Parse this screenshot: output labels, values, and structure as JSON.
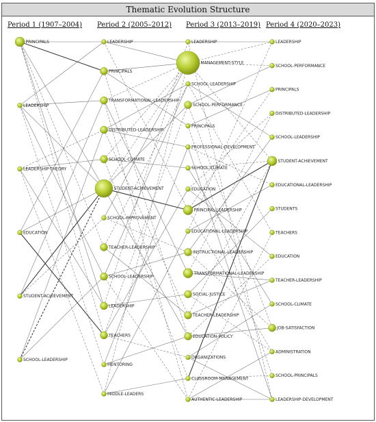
{
  "title": "Thematic Evolution Structure",
  "colors": {
    "node": "#b5cc2e",
    "node_dark": "#7f8f16",
    "node_light": "#eef7a4",
    "edge": "#333333"
  },
  "periods": [
    {
      "label": "Period 1 (1907–2004)",
      "nodes": [
        {
          "name": "PRINCIPALS",
          "size": 3
        },
        {
          "name": "LEADERSHIP",
          "size": 1
        },
        {
          "name": "LEADERSHIP-THEORY",
          "size": 1
        },
        {
          "name": "EDUCATION",
          "size": 1
        },
        {
          "name": "STUDENT-ACHIEVEMENT",
          "size": 1
        },
        {
          "name": "SCHOOL-LEADERSHIP",
          "size": 1
        }
      ]
    },
    {
      "label": "Period 2 (2005–2012)",
      "nodes": [
        {
          "name": "LEADERSHIP",
          "size": 1
        },
        {
          "name": "PRINCIPALS",
          "size": 2
        },
        {
          "name": "TRANSFORMATIONAL-LEADERSHIP",
          "size": 2
        },
        {
          "name": "DISTRIBUTED-LEADERSHIP",
          "size": 2
        },
        {
          "name": "SCHOOL-CLIMATE",
          "size": 2
        },
        {
          "name": "STUDENT-ACHIEVEMENT",
          "size": 5
        },
        {
          "name": "SCHOOL-IMPROVEMENT",
          "size": 1
        },
        {
          "name": "TEACHER-LEADERSHIP",
          "size": 2
        },
        {
          "name": "SCHOOL-LEADERSHIP",
          "size": 2
        },
        {
          "name": "LEADERSHIP",
          "size": 2
        },
        {
          "name": "TEACHERS",
          "size": 2
        },
        {
          "name": "MENTORING",
          "size": 1
        },
        {
          "name": "MIDDLE-LEADERS",
          "size": 1
        }
      ]
    },
    {
      "label": "Period 3 (2013–2019)",
      "nodes": [
        {
          "name": "LEADERSHIP",
          "size": 1
        },
        {
          "name": "MANAGEMENT-STYLE",
          "size": 6
        },
        {
          "name": "SCHOOL-LEADERSHIP",
          "size": 1
        },
        {
          "name": "SCHOOL-PERFORMANCE",
          "size": 2
        },
        {
          "name": "PRINCIPALS",
          "size": 1
        },
        {
          "name": "PROFESSIONAL-DEVELOPMENT",
          "size": 1
        },
        {
          "name": "SCHOOL-CLIMATE",
          "size": 1
        },
        {
          "name": "EDUCATION",
          "size": 1
        },
        {
          "name": "PRINCIPAL-LEADERSHIP",
          "size": 3
        },
        {
          "name": "EDUCATIONAL-LEADERSHIP",
          "size": 1
        },
        {
          "name": "INSTRUCTIONAL-LEADERSHIP",
          "size": 2
        },
        {
          "name": "TRANSFORMATIONAL-LEADERSHIP",
          "size": 3
        },
        {
          "name": "SOCIAL-JUSTICE",
          "size": 2
        },
        {
          "name": "TEACHER-LEADERSHIP",
          "size": 2
        },
        {
          "name": "EDUCATION-POLICY",
          "size": 2
        },
        {
          "name": "ORGANIZATIONS",
          "size": 1
        },
        {
          "name": "CLASSROOM-MANAGEMENT",
          "size": 1
        },
        {
          "name": "AUTHENTIC-LEADERSHIP",
          "size": 1
        }
      ]
    },
    {
      "label": "Period 4 (2020–2023)",
      "nodes": [
        {
          "name": "LEADERSHIP",
          "size": 1
        },
        {
          "name": "SCHOOL-PERFORMANCE",
          "size": 1
        },
        {
          "name": "PRINCIPALS",
          "size": 1
        },
        {
          "name": "DISTRIBUTED-LEADERSHIP",
          "size": 1
        },
        {
          "name": "SCHOOL-LEADERSHIP",
          "size": 1
        },
        {
          "name": "STUDENT-ACHIEVEMENT",
          "size": 3
        },
        {
          "name": "EDUCATIONAL-LEADERSHIP",
          "size": 1
        },
        {
          "name": "STUDENTS",
          "size": 1
        },
        {
          "name": "TEACHERS",
          "size": 1
        },
        {
          "name": "EDUCATION",
          "size": 1
        },
        {
          "name": "TEACHER-LEADERSHIP",
          "size": 1
        },
        {
          "name": "SCHOOL-CLIMATE",
          "size": 1
        },
        {
          "name": "JOB-SATISFACTION",
          "size": 2
        },
        {
          "name": "ADMINISTRATION",
          "size": 1
        },
        {
          "name": "SCHOOL-PRINCIPALS",
          "size": 1
        },
        {
          "name": "LEADERSHIP-DEVELOPMENT",
          "size": 1
        }
      ]
    }
  ],
  "links": [
    {
      "from": [
        0,
        0
      ],
      "to": [
        1,
        0
      ],
      "style": "solid",
      "weight": 1
    },
    {
      "from": [
        0,
        0
      ],
      "to": [
        1,
        1
      ],
      "style": "solid",
      "weight": 2
    },
    {
      "from": [
        0,
        0
      ],
      "to": [
        1,
        5
      ],
      "style": "solid",
      "weight": 1
    },
    {
      "from": [
        0,
        0
      ],
      "to": [
        1,
        7
      ],
      "style": "dashed",
      "weight": 1
    },
    {
      "from": [
        0,
        0
      ],
      "to": [
        1,
        9
      ],
      "style": "solid",
      "weight": 1
    },
    {
      "from": [
        0,
        0
      ],
      "to": [
        1,
        10
      ],
      "style": "dashed",
      "weight": 1
    },
    {
      "from": [
        0,
        1
      ],
      "to": [
        1,
        0
      ],
      "style": "solid",
      "weight": 1
    },
    {
      "from": [
        0,
        1
      ],
      "to": [
        1,
        2
      ],
      "style": "solid",
      "weight": 1
    },
    {
      "from": [
        0,
        1
      ],
      "to": [
        1,
        5
      ],
      "style": "solid",
      "weight": 1
    },
    {
      "from": [
        0,
        1
      ],
      "to": [
        1,
        8
      ],
      "style": "solid",
      "weight": 1
    },
    {
      "from": [
        0,
        1
      ],
      "to": [
        1,
        11
      ],
      "style": "dashed",
      "weight": 1
    },
    {
      "from": [
        0,
        2
      ],
      "to": [
        1,
        3
      ],
      "style": "dashed",
      "weight": 1
    },
    {
      "from": [
        0,
        2
      ],
      "to": [
        1,
        4
      ],
      "style": "solid",
      "weight": 1
    },
    {
      "from": [
        0,
        2
      ],
      "to": [
        1,
        9
      ],
      "style": "solid",
      "weight": 1
    },
    {
      "from": [
        0,
        2
      ],
      "to": [
        1,
        12
      ],
      "style": "dashed",
      "weight": 1
    },
    {
      "from": [
        0,
        3
      ],
      "to": [
        1,
        1
      ],
      "style": "solid",
      "weight": 1
    },
    {
      "from": [
        0,
        3
      ],
      "to": [
        1,
        5
      ],
      "style": "solid",
      "weight": 1
    },
    {
      "from": [
        0,
        3
      ],
      "to": [
        1,
        10
      ],
      "style": "solid",
      "weight": 2
    },
    {
      "from": [
        0,
        4
      ],
      "to": [
        1,
        5
      ],
      "style": "solid",
      "weight": 2
    },
    {
      "from": [
        0,
        4
      ],
      "to": [
        1,
        2
      ],
      "style": "solid",
      "weight": 1
    },
    {
      "from": [
        0,
        4
      ],
      "to": [
        1,
        6
      ],
      "style": "dashed",
      "weight": 1
    },
    {
      "from": [
        0,
        5
      ],
      "to": [
        1,
        8
      ],
      "style": "solid",
      "weight": 1
    },
    {
      "from": [
        0,
        5
      ],
      "to": [
        1,
        3
      ],
      "style": "solid",
      "weight": 1
    },
    {
      "from": [
        0,
        5
      ],
      "to": [
        1,
        5
      ],
      "style": "dashed",
      "weight": 2
    },
    {
      "from": [
        1,
        0
      ],
      "to": [
        2,
        0
      ],
      "style": "solid",
      "weight": 1
    },
    {
      "from": [
        1,
        0
      ],
      "to": [
        2,
        1
      ],
      "style": "solid",
      "weight": 1
    },
    {
      "from": [
        1,
        0
      ],
      "to": [
        2,
        8
      ],
      "style": "dashed",
      "weight": 1
    },
    {
      "from": [
        1,
        1
      ],
      "to": [
        2,
        4
      ],
      "style": "solid",
      "weight": 1
    },
    {
      "from": [
        1,
        1
      ],
      "to": [
        2,
        1
      ],
      "style": "solid",
      "weight": 1
    },
    {
      "from": [
        1,
        1
      ],
      "to": [
        2,
        14
      ],
      "style": "dashed",
      "weight": 1
    },
    {
      "from": [
        1,
        2
      ],
      "to": [
        2,
        11
      ],
      "style": "solid",
      "weight": 1
    },
    {
      "from": [
        1,
        2
      ],
      "to": [
        2,
        1
      ],
      "style": "dashed",
      "weight": 1
    },
    {
      "from": [
        1,
        2
      ],
      "to": [
        2,
        17
      ],
      "style": "dashed",
      "weight": 1
    },
    {
      "from": [
        1,
        3
      ],
      "to": [
        2,
        2
      ],
      "style": "solid",
      "weight": 1
    },
    {
      "from": [
        1,
        3
      ],
      "to": [
        2,
        13
      ],
      "style": "dashed",
      "weight": 1
    },
    {
      "from": [
        1,
        3
      ],
      "to": [
        2,
        5
      ],
      "style": "solid",
      "weight": 1
    },
    {
      "from": [
        1,
        4
      ],
      "to": [
        2,
        6
      ],
      "style": "solid",
      "weight": 1
    },
    {
      "from": [
        1,
        4
      ],
      "to": [
        2,
        1
      ],
      "style": "dashed",
      "weight": 1
    },
    {
      "from": [
        1,
        4
      ],
      "to": [
        2,
        16
      ],
      "style": "dashed",
      "weight": 1
    },
    {
      "from": [
        1,
        5
      ],
      "to": [
        2,
        3
      ],
      "style": "solid",
      "weight": 1
    },
    {
      "from": [
        1,
        5
      ],
      "to": [
        2,
        8
      ],
      "style": "solid",
      "weight": 2
    },
    {
      "from": [
        1,
        5
      ],
      "to": [
        2,
        14
      ],
      "style": "solid",
      "weight": 1
    },
    {
      "from": [
        1,
        5
      ],
      "to": [
        2,
        1
      ],
      "style": "dashed",
      "weight": 1
    },
    {
      "from": [
        1,
        6
      ],
      "to": [
        2,
        10
      ],
      "style": "dashed",
      "weight": 1
    },
    {
      "from": [
        1,
        6
      ],
      "to": [
        2,
        1
      ],
      "style": "solid",
      "weight": 1
    },
    {
      "from": [
        1,
        7
      ],
      "to": [
        2,
        13
      ],
      "style": "solid",
      "weight": 1
    },
    {
      "from": [
        1,
        7
      ],
      "to": [
        2,
        2
      ],
      "style": "dashed",
      "weight": 1
    },
    {
      "from": [
        1,
        8
      ],
      "to": [
        2,
        2
      ],
      "style": "solid",
      "weight": 1
    },
    {
      "from": [
        1,
        8
      ],
      "to": [
        2,
        10
      ],
      "style": "solid",
      "weight": 1
    },
    {
      "from": [
        1,
        8
      ],
      "to": [
        2,
        17
      ],
      "style": "dashed",
      "weight": 1
    },
    {
      "from": [
        1,
        9
      ],
      "to": [
        2,
        0
      ],
      "style": "dashed",
      "weight": 1
    },
    {
      "from": [
        1,
        9
      ],
      "to": [
        2,
        12
      ],
      "style": "solid",
      "weight": 1
    },
    {
      "from": [
        1,
        10
      ],
      "to": [
        2,
        7
      ],
      "style": "solid",
      "weight": 1
    },
    {
      "from": [
        1,
        10
      ],
      "to": [
        2,
        15
      ],
      "style": "dashed",
      "weight": 1
    },
    {
      "from": [
        1,
        10
      ],
      "to": [
        2,
        3
      ],
      "style": "dashed",
      "weight": 1
    },
    {
      "from": [
        1,
        11
      ],
      "to": [
        2,
        5
      ],
      "style": "solid",
      "weight": 1
    },
    {
      "from": [
        1,
        11
      ],
      "to": [
        2,
        14
      ],
      "style": "solid",
      "weight": 1
    },
    {
      "from": [
        1,
        12
      ],
      "to": [
        2,
        9
      ],
      "style": "solid",
      "weight": 1
    },
    {
      "from": [
        1,
        12
      ],
      "to": [
        2,
        1
      ],
      "style": "dashed",
      "weight": 1
    },
    {
      "from": [
        1,
        12
      ],
      "to": [
        2,
        16
      ],
      "style": "solid",
      "weight": 1
    },
    {
      "from": [
        2,
        0
      ],
      "to": [
        3,
        0
      ],
      "style": "solid",
      "weight": 1
    },
    {
      "from": [
        2,
        0
      ],
      "to": [
        3,
        15
      ],
      "style": "dashed",
      "weight": 1
    },
    {
      "from": [
        2,
        1
      ],
      "to": [
        3,
        1
      ],
      "style": "dashed",
      "weight": 1
    },
    {
      "from": [
        2,
        1
      ],
      "to": [
        3,
        0
      ],
      "style": "dashed",
      "weight": 1
    },
    {
      "from": [
        2,
        1
      ],
      "to": [
        3,
        5
      ],
      "style": "dashed",
      "weight": 1
    },
    {
      "from": [
        2,
        2
      ],
      "to": [
        3,
        4
      ],
      "style": "solid",
      "weight": 1
    },
    {
      "from": [
        2,
        2
      ],
      "to": [
        3,
        8
      ],
      "style": "dashed",
      "weight": 1
    },
    {
      "from": [
        2,
        3
      ],
      "to": [
        3,
        1
      ],
      "style": "solid",
      "weight": 1
    },
    {
      "from": [
        2,
        3
      ],
      "to": [
        3,
        12
      ],
      "style": "dashed",
      "weight": 1
    },
    {
      "from": [
        2,
        4
      ],
      "to": [
        3,
        2
      ],
      "style": "solid",
      "weight": 1
    },
    {
      "from": [
        2,
        4
      ],
      "to": [
        3,
        14
      ],
      "style": "dashed",
      "weight": 1
    },
    {
      "from": [
        2,
        5
      ],
      "to": [
        3,
        15
      ],
      "style": "solid",
      "weight": 1
    },
    {
      "from": [
        2,
        5
      ],
      "to": [
        3,
        6
      ],
      "style": "dashed",
      "weight": 1
    },
    {
      "from": [
        2,
        6
      ],
      "to": [
        3,
        11
      ],
      "style": "solid",
      "weight": 1
    },
    {
      "from": [
        2,
        6
      ],
      "to": [
        3,
        5
      ],
      "style": "dashed",
      "weight": 1
    },
    {
      "from": [
        2,
        7
      ],
      "to": [
        3,
        9
      ],
      "style": "solid",
      "weight": 1
    },
    {
      "from": [
        2,
        7
      ],
      "to": [
        3,
        3
      ],
      "style": "dashed",
      "weight": 1
    },
    {
      "from": [
        2,
        8
      ],
      "to": [
        3,
        5
      ],
      "style": "solid",
      "weight": 2
    },
    {
      "from": [
        2,
        8
      ],
      "to": [
        3,
        2
      ],
      "style": "dashed",
      "weight": 1
    },
    {
      "from": [
        2,
        8
      ],
      "to": [
        3,
        13
      ],
      "style": "dashed",
      "weight": 1
    },
    {
      "from": [
        2,
        9
      ],
      "to": [
        3,
        6
      ],
      "style": "solid",
      "weight": 1
    },
    {
      "from": [
        2,
        9
      ],
      "to": [
        3,
        0
      ],
      "style": "dashed",
      "weight": 1
    },
    {
      "from": [
        2,
        10
      ],
      "to": [
        3,
        4
      ],
      "style": "solid",
      "weight": 1
    },
    {
      "from": [
        2,
        10
      ],
      "to": [
        3,
        12
      ],
      "style": "dashed",
      "weight": 1
    },
    {
      "from": [
        2,
        11
      ],
      "to": [
        3,
        10
      ],
      "style": "solid",
      "weight": 1
    },
    {
      "from": [
        2,
        11
      ],
      "to": [
        3,
        3
      ],
      "style": "dashed",
      "weight": 1
    },
    {
      "from": [
        2,
        12
      ],
      "to": [
        3,
        7
      ],
      "style": "solid",
      "weight": 1
    },
    {
      "from": [
        2,
        12
      ],
      "to": [
        3,
        13
      ],
      "style": "dashed",
      "weight": 1
    },
    {
      "from": [
        2,
        13
      ],
      "to": [
        3,
        10
      ],
      "style": "solid",
      "weight": 1
    },
    {
      "from": [
        2,
        13
      ],
      "to": [
        3,
        5
      ],
      "style": "dashed",
      "weight": 1
    },
    {
      "from": [
        2,
        14
      ],
      "to": [
        3,
        12
      ],
      "style": "solid",
      "weight": 1
    },
    {
      "from": [
        2,
        14
      ],
      "to": [
        3,
        9
      ],
      "style": "dashed",
      "weight": 1
    },
    {
      "from": [
        2,
        15
      ],
      "to": [
        3,
        11
      ],
      "style": "solid",
      "weight": 1
    },
    {
      "from": [
        2,
        15
      ],
      "to": [
        3,
        15
      ],
      "style": "solid",
      "weight": 1
    },
    {
      "from": [
        2,
        16
      ],
      "to": [
        3,
        5
      ],
      "style": "solid",
      "weight": 2
    },
    {
      "from": [
        2,
        16
      ],
      "to": [
        3,
        14
      ],
      "style": "dashed",
      "weight": 1
    },
    {
      "from": [
        2,
        17
      ],
      "to": [
        3,
        15
      ],
      "style": "solid",
      "weight": 1
    },
    {
      "from": [
        2,
        17
      ],
      "to": [
        3,
        13
      ],
      "style": "solid",
      "weight": 1
    },
    {
      "from": [
        2,
        17
      ],
      "to": [
        3,
        8
      ],
      "style": "dashed",
      "weight": 1
    }
  ]
}
